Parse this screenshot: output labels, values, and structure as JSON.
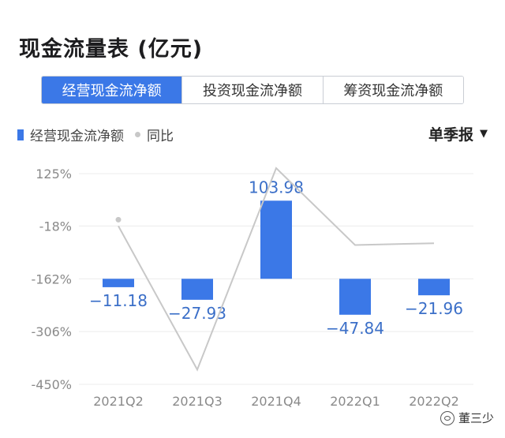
{
  "title": "现金流量表 (亿元)",
  "tabs": [
    {
      "label": "经营现金流净额",
      "active": true
    },
    {
      "label": "投资现金流净额",
      "active": false
    },
    {
      "label": "筹资现金流净额",
      "active": false
    }
  ],
  "legend": {
    "bar_label": "经营现金流净额",
    "line_label": "同比"
  },
  "period_selector": {
    "label": "单季报",
    "caret": "▼"
  },
  "watermark": {
    "text": "董三少",
    "icon": "wechat-icon"
  },
  "colors": {
    "accent": "#3b78e7",
    "bar": "#3b78e7",
    "line": "#c8c8c8"
  },
  "chart_data": {
    "type": "bar",
    "categories": [
      "2021Q2",
      "2021Q3",
      "2021Q4",
      "2022Q1",
      "2022Q2"
    ],
    "series": [
      {
        "name": "经营现金流净额",
        "type": "bar",
        "values": [
          -11.18,
          -27.93,
          103.98,
          -47.84,
          -21.96
        ],
        "labels": [
          "−11.18",
          "−27.93",
          "103.98",
          "−47.84",
          "−21.96"
        ]
      },
      {
        "name": "同比",
        "type": "line",
        "values": [
          -18,
          -410,
          140,
          -70,
          -65
        ]
      }
    ],
    "bar_axis": {
      "ylim": [
        -140,
        140
      ]
    },
    "line_axis": {
      "ticks": [
        125,
        -18,
        -162,
        -306,
        -450
      ],
      "tick_labels": [
        "125%",
        "-18%",
        "-162%",
        "-306%",
        "-450%"
      ],
      "ylim": [
        -450,
        125
      ]
    },
    "grid": true
  }
}
